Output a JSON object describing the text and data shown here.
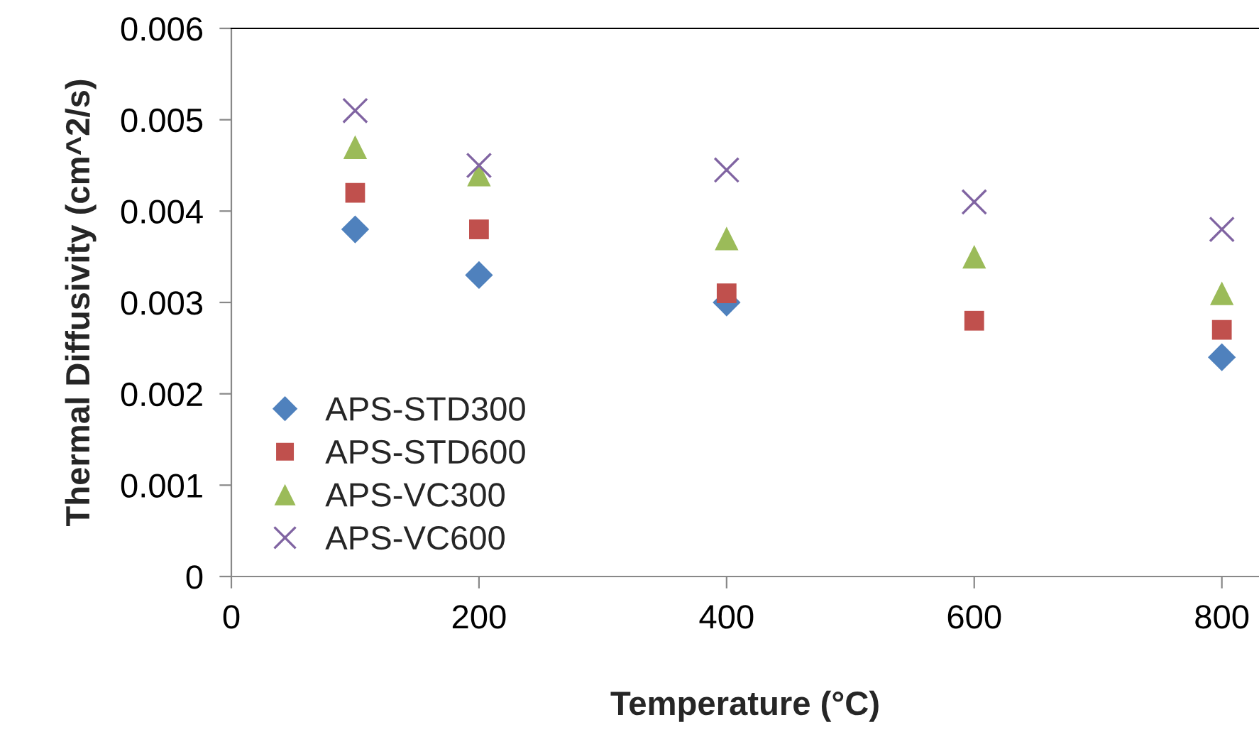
{
  "chart_data": {
    "type": "scatter",
    "xlabel": "Temperature (°C)",
    "ylabel": "Thermal Diffusivity (cm^2/s)",
    "x": [
      100,
      200,
      400,
      600,
      800
    ],
    "series": [
      {
        "name": "APS-STD300",
        "color": "#4f81bd",
        "marker": "diamond",
        "values": [
          0.0038,
          0.0033,
          0.003,
          null,
          0.0024
        ]
      },
      {
        "name": "APS-STD600",
        "color": "#c0504d",
        "marker": "square",
        "values": [
          0.0042,
          0.0038,
          0.0031,
          0.0028,
          0.0027
        ]
      },
      {
        "name": "APS-VC300",
        "color": "#9bbb59",
        "marker": "triangle",
        "values": [
          0.0047,
          0.0044,
          0.0037,
          0.0035,
          0.0031
        ]
      },
      {
        "name": "APS-VC600",
        "color": "#8064a2",
        "marker": "cross",
        "values": [
          0.0051,
          0.0045,
          0.00445,
          0.0041,
          0.0038
        ]
      }
    ],
    "xlim": [
      0,
      830
    ],
    "xticks": [
      0,
      200,
      400,
      600,
      800
    ],
    "ylim": [
      0,
      0.006
    ],
    "yticks": [
      0,
      0.001,
      0.002,
      0.003,
      0.004,
      0.005,
      0.006
    ],
    "grid": false,
    "legend": "bottom left"
  }
}
